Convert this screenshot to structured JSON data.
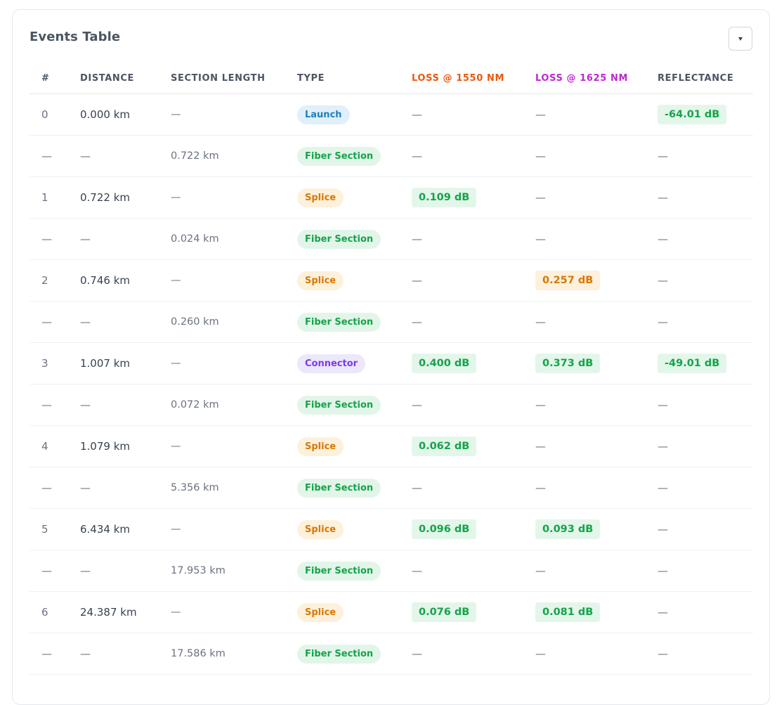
{
  "title": "Events Table",
  "headers": [
    "#",
    "DISTANCE",
    "SECTION LENGTH",
    "TYPE",
    "LOSS @ 1550 NM",
    "LOSS @ 1625 NM",
    "REFLECTANCE"
  ],
  "rows": [
    {
      "idx": "0",
      "distance": "0.000 km",
      "section": "—",
      "type": "Launch",
      "type_class": "launch",
      "loss1550": "—",
      "loss1550_status": "none",
      "loss1625": "—",
      "loss1625_status": "none",
      "reflectance": "-64.01 dB",
      "reflectance_status": "good"
    },
    {
      "idx": "—",
      "distance": "—",
      "section": "0.722 km",
      "type": "Fiber Section",
      "type_class": "fiber",
      "loss1550": "—",
      "loss1550_status": "none",
      "loss1625": "—",
      "loss1625_status": "none",
      "reflectance": "—",
      "reflectance_status": "none"
    },
    {
      "idx": "1",
      "distance": "0.722 km",
      "section": "—",
      "type": "Splice",
      "type_class": "splice",
      "loss1550": "0.109 dB",
      "loss1550_status": "good",
      "loss1625": "—",
      "loss1625_status": "none",
      "reflectance": "—",
      "reflectance_status": "none"
    },
    {
      "idx": "—",
      "distance": "—",
      "section": "0.024 km",
      "type": "Fiber Section",
      "type_class": "fiber",
      "loss1550": "—",
      "loss1550_status": "none",
      "loss1625": "—",
      "loss1625_status": "none",
      "reflectance": "—",
      "reflectance_status": "none"
    },
    {
      "idx": "2",
      "distance": "0.746 km",
      "section": "—",
      "type": "Splice",
      "type_class": "splice",
      "loss1550": "—",
      "loss1550_status": "none",
      "loss1625": "0.257 dB",
      "loss1625_status": "warn",
      "reflectance": "—",
      "reflectance_status": "none"
    },
    {
      "idx": "—",
      "distance": "—",
      "section": "0.260 km",
      "type": "Fiber Section",
      "type_class": "fiber",
      "loss1550": "—",
      "loss1550_status": "none",
      "loss1625": "—",
      "loss1625_status": "none",
      "reflectance": "—",
      "reflectance_status": "none"
    },
    {
      "idx": "3",
      "distance": "1.007 km",
      "section": "—",
      "type": "Connector",
      "type_class": "connector",
      "loss1550": "0.400 dB",
      "loss1550_status": "good",
      "loss1625": "0.373 dB",
      "loss1625_status": "good",
      "reflectance": "-49.01 dB",
      "reflectance_status": "good"
    },
    {
      "idx": "—",
      "distance": "—",
      "section": "0.072 km",
      "type": "Fiber Section",
      "type_class": "fiber",
      "loss1550": "—",
      "loss1550_status": "none",
      "loss1625": "—",
      "loss1625_status": "none",
      "reflectance": "—",
      "reflectance_status": "none"
    },
    {
      "idx": "4",
      "distance": "1.079 km",
      "section": "—",
      "type": "Splice",
      "type_class": "splice",
      "loss1550": "0.062 dB",
      "loss1550_status": "good",
      "loss1625": "—",
      "loss1625_status": "none",
      "reflectance": "—",
      "reflectance_status": "none"
    },
    {
      "idx": "—",
      "distance": "—",
      "section": "5.356 km",
      "type": "Fiber Section",
      "type_class": "fiber",
      "loss1550": "—",
      "loss1550_status": "none",
      "loss1625": "—",
      "loss1625_status": "none",
      "reflectance": "—",
      "reflectance_status": "none"
    },
    {
      "idx": "5",
      "distance": "6.434 km",
      "section": "—",
      "type": "Splice",
      "type_class": "splice",
      "loss1550": "0.096 dB",
      "loss1550_status": "good",
      "loss1625": "0.093 dB",
      "loss1625_status": "good",
      "reflectance": "—",
      "reflectance_status": "none"
    },
    {
      "idx": "—",
      "distance": "—",
      "section": "17.953 km",
      "type": "Fiber Section",
      "type_class": "fiber",
      "loss1550": "—",
      "loss1550_status": "none",
      "loss1625": "—",
      "loss1625_status": "none",
      "reflectance": "—",
      "reflectance_status": "none"
    },
    {
      "idx": "6",
      "distance": "24.387 km",
      "section": "—",
      "type": "Splice",
      "type_class": "splice",
      "loss1550": "0.076 dB",
      "loss1550_status": "good",
      "loss1625": "0.081 dB",
      "loss1625_status": "good",
      "reflectance": "—",
      "reflectance_status": "none"
    },
    {
      "idx": "—",
      "distance": "—",
      "section": "17.586 km",
      "type": "Fiber Section",
      "type_class": "fiber",
      "loss1550": "—",
      "loss1550_status": "none",
      "loss1625": "—",
      "loss1625_status": "none",
      "reflectance": "—",
      "reflectance_status": "none"
    }
  ],
  "colors": {
    "loss1550_header": "#ea580c",
    "loss1625_header": "#c026d3",
    "good": "#16a34a",
    "warn": "#d97706"
  },
  "icons": {
    "collapse": "chevron-down-icon"
  }
}
